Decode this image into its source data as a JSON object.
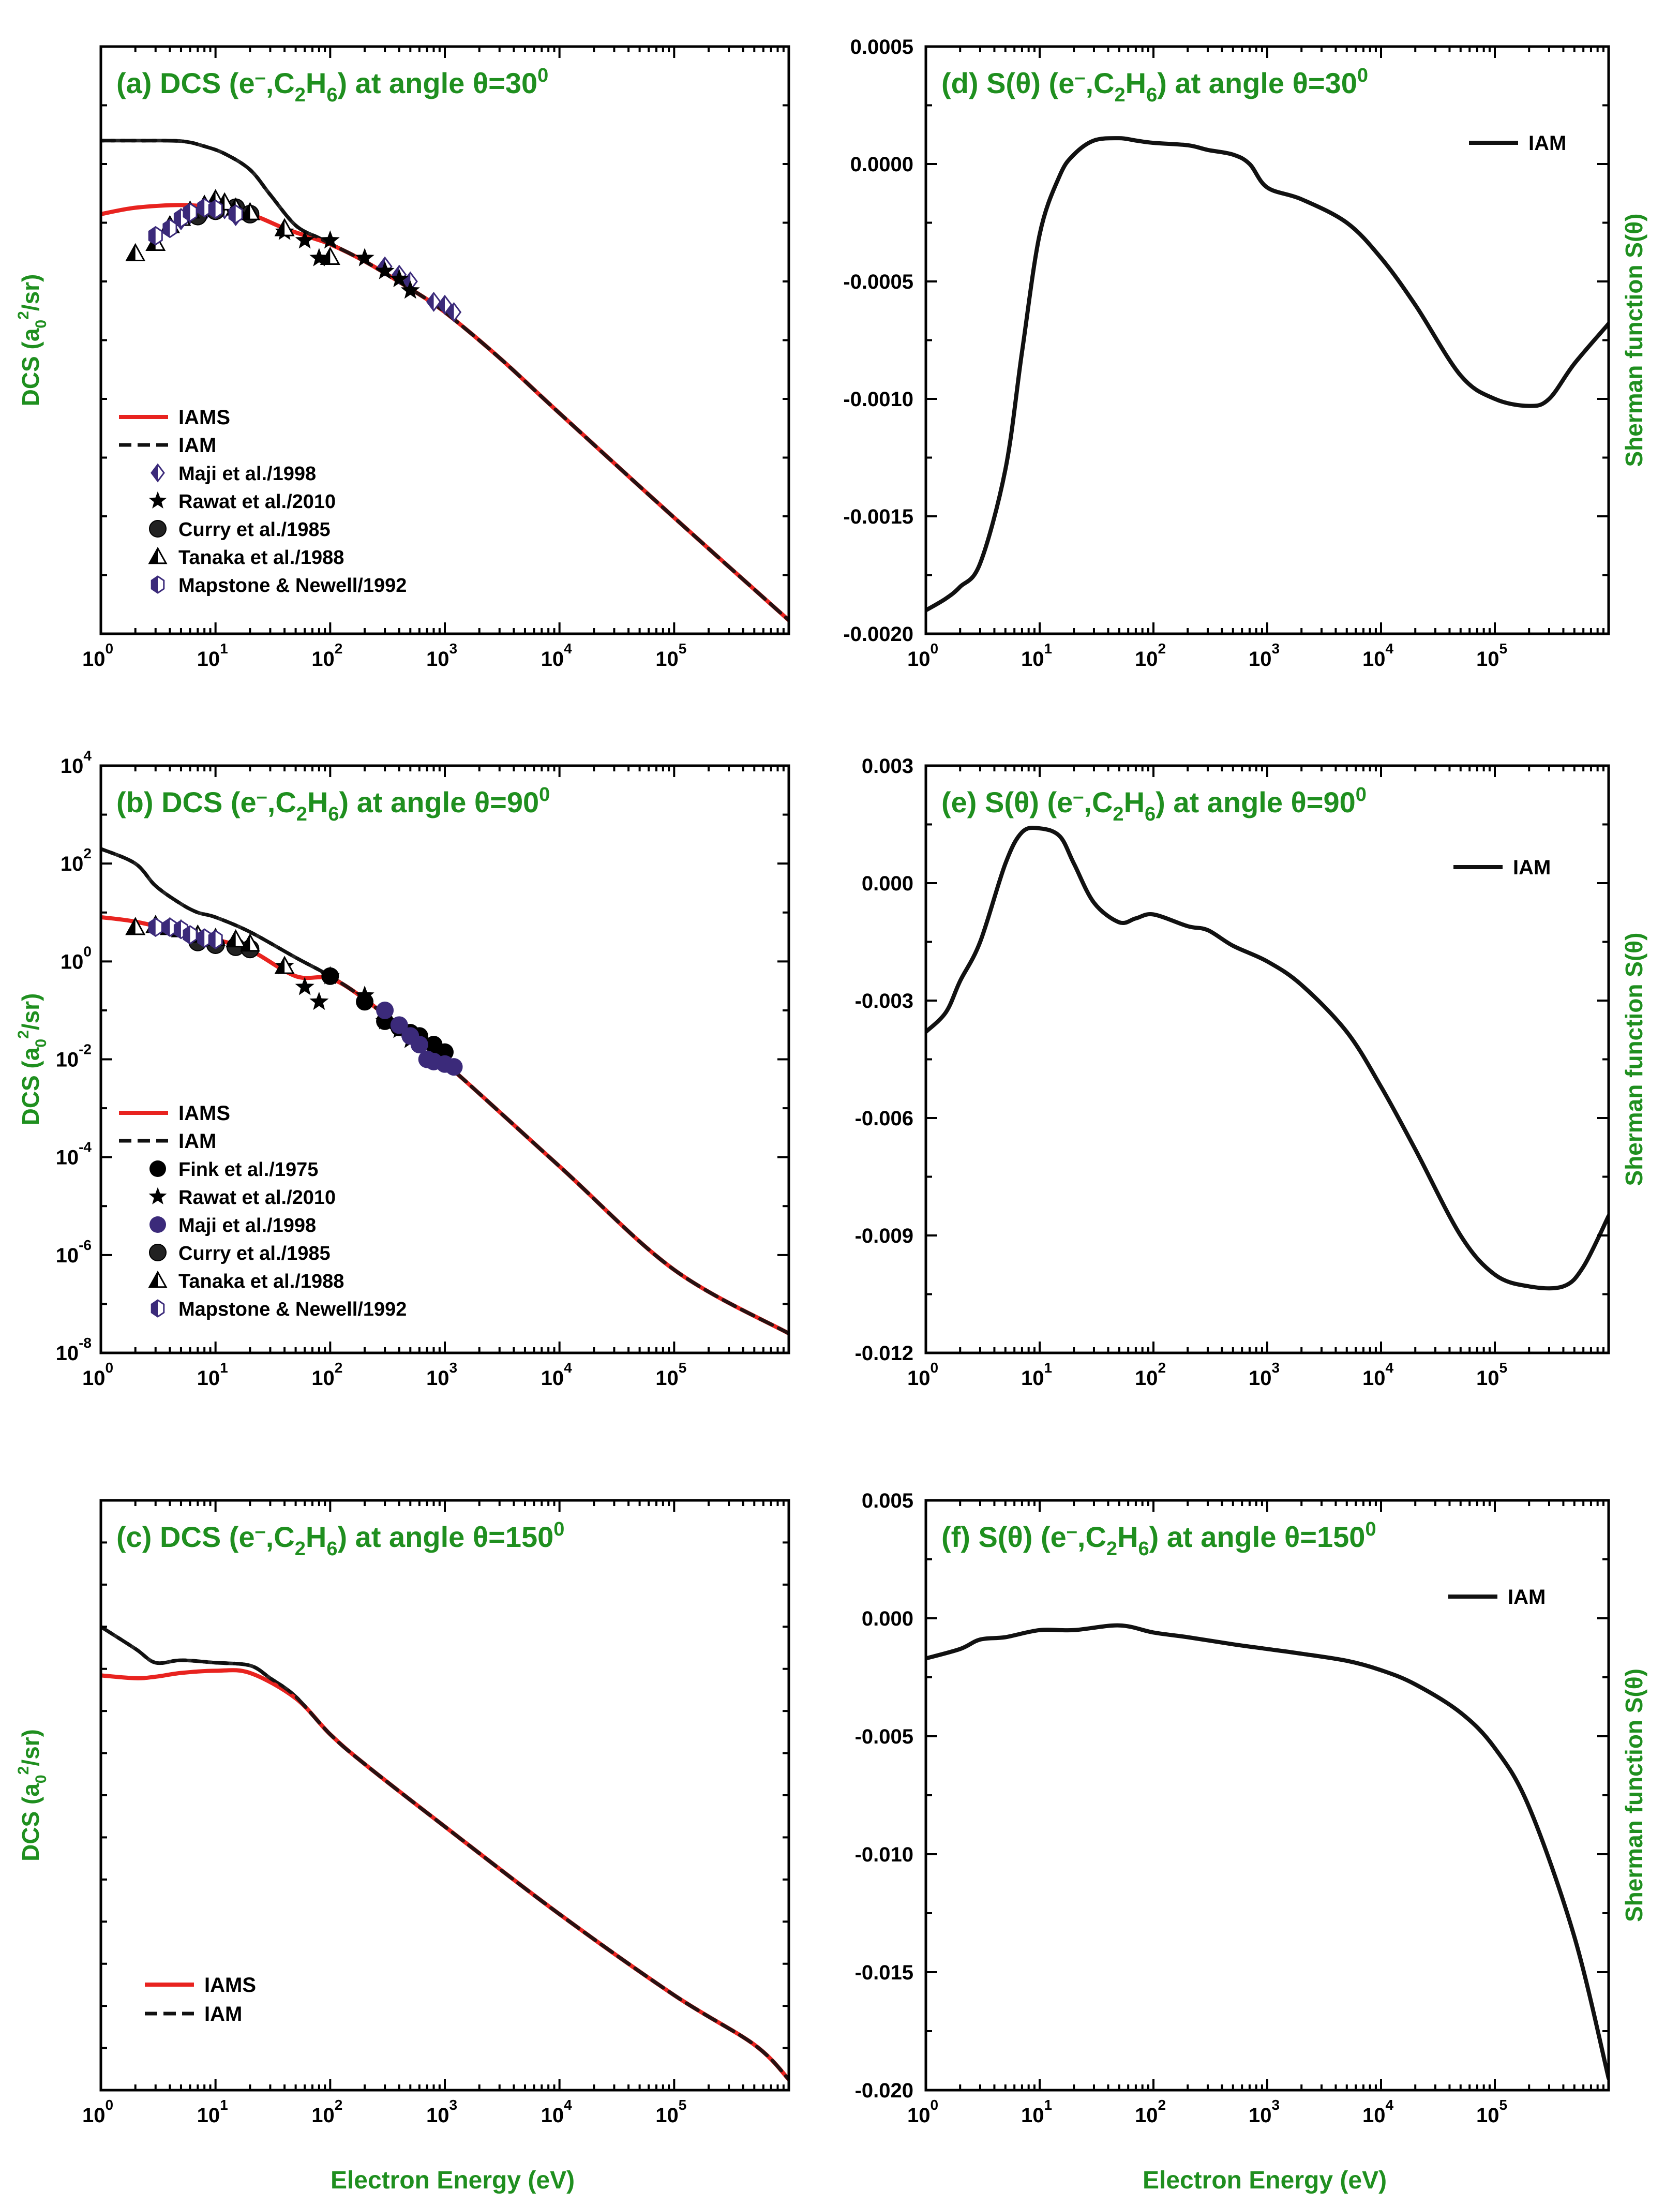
{
  "figure": {
    "xlabel_left": "Electron Energy (eV)",
    "xlabel_right": "Electron Energy (eV)",
    "colors": {
      "iams": "#e8231f",
      "iam": "#111111",
      "label": "#1f8f1f",
      "marker_fill": "#3b2a7a"
    }
  },
  "chart_data": [
    {
      "id": "a",
      "type": "line",
      "title_parts": [
        "(a) DCS (e",
        "–",
        ",C",
        "2",
        "H",
        "6",
        ") at angle θ=30",
        "0"
      ],
      "ylabel_parts": [
        "DCS (a",
        "0",
        "2",
        "/sr)"
      ],
      "xscale": "log",
      "yscale": "log",
      "xlim": [
        1,
        1000000
      ],
      "ylim": [
        1e-06,
        10000
      ],
      "xtick_exponents": [
        0,
        1,
        2,
        3,
        4,
        5,
        6
      ],
      "ytick_exponents": [
        -6,
        -4,
        -2,
        0,
        2,
        4
      ],
      "legend_position": "bottom-left",
      "series": [
        {
          "name": "IAMS",
          "style": "solid",
          "color": "#e8231f",
          "x": [
            1,
            2,
            5,
            10,
            20,
            40,
            70,
            100,
            200,
            500,
            1000,
            3000,
            10000,
            100000,
            1000000
          ],
          "y": [
            14,
            18,
            20,
            18,
            14,
            8,
            5.5,
            4.3,
            2.2,
            0.75,
            0.3,
            0.05,
            0.0057,
            9.5e-05,
            1.7e-06
          ]
        },
        {
          "name": "IAM",
          "style": "dashed",
          "color": "#111111",
          "x": [
            1,
            2,
            5,
            8,
            12,
            20,
            30,
            50,
            80,
            100,
            200,
            500,
            1000,
            3000,
            10000,
            100000,
            1000000
          ],
          "y": [
            250,
            250,
            245,
            200,
            150,
            80,
            30,
            9,
            5.5,
            4.4,
            2.2,
            0.75,
            0.3,
            0.05,
            0.0057,
            9.5e-05,
            1.7e-06
          ]
        }
      ],
      "markers": [
        {
          "name": "Maji et al./1998",
          "marker": "diamond-half",
          "x": [
            5,
            6,
            8,
            10,
            12,
            15,
            300,
            400,
            500,
            800,
            1000,
            1200
          ],
          "y": [
            11,
            14,
            15,
            18,
            17,
            13,
            1.8,
            1.3,
            1.0,
            0.45,
            0.4,
            0.3
          ]
        },
        {
          "name": "Rawat et al./2010",
          "marker": "star",
          "x": [
            40,
            60,
            80,
            100,
            200,
            300,
            400,
            500
          ],
          "y": [
            7,
            5,
            2.5,
            5,
            2.5,
            1.5,
            1.1,
            0.7
          ]
        },
        {
          "name": "Curry et al./1985",
          "marker": "sphere",
          "x": [
            7,
            10,
            15,
            20
          ],
          "y": [
            13,
            16,
            18,
            14
          ]
        },
        {
          "name": "Tanaka et al./1988",
          "marker": "triangle-half",
          "x": [
            2,
            3,
            4,
            5,
            6,
            8,
            10,
            12,
            15,
            20,
            40,
            100
          ],
          "y": [
            3,
            4.5,
            9,
            12,
            16,
            20,
            25,
            22,
            18,
            15,
            8,
            2.6
          ]
        },
        {
          "name": "Mapstone & Newell/1992",
          "marker": "hexagon-half",
          "x": [
            3,
            4,
            5,
            6,
            8,
            10,
            15
          ],
          "y": [
            6,
            8,
            12,
            15,
            18,
            17,
            14
          ]
        }
      ]
    },
    {
      "id": "b",
      "type": "line",
      "title_parts": [
        "(b) DCS (e",
        "–",
        ",C",
        "2",
        "H",
        "6",
        ") at angle θ=90",
        "0"
      ],
      "ylabel_parts": [
        "DCS (a",
        "0",
        "2",
        "/sr)"
      ],
      "xscale": "log",
      "yscale": "log",
      "xlim": [
        1,
        1000000
      ],
      "ylim": [
        1e-08,
        10000
      ],
      "xtick_exponents": [
        0,
        1,
        2,
        3,
        4,
        5,
        6
      ],
      "ytick_exponents": [
        -8,
        -6,
        -4,
        -2,
        0,
        2,
        4
      ],
      "legend_position": "bottom-left",
      "series": [
        {
          "name": "IAMS",
          "style": "solid",
          "color": "#e8231f",
          "x": [
            1,
            2,
            5,
            10,
            20,
            50,
            100,
            200,
            500,
            1000,
            10000,
            100000,
            1000000
          ],
          "y": [
            8,
            6.5,
            4,
            2.8,
            1.7,
            0.5,
            0.45,
            0.17,
            0.03,
            0.0085,
            6.5e-05,
            5e-07,
            2.5e-08
          ]
        },
        {
          "name": "IAM",
          "style": "dashed",
          "color": "#111111",
          "x": [
            1,
            2,
            3,
            5,
            7,
            10,
            20,
            50,
            100,
            200,
            500,
            1000,
            10000,
            100000,
            1000000
          ],
          "y": [
            200,
            100,
            35,
            15,
            10,
            8,
            4,
            1.2,
            0.5,
            0.17,
            0.03,
            0.0085,
            6.5e-05,
            5e-07,
            2.5e-08
          ]
        }
      ],
      "markers": [
        {
          "name": "Fink et al./1975",
          "marker": "circle",
          "x": [
            100,
            200,
            300,
            400,
            500,
            600,
            800,
            1000
          ],
          "y": [
            0.5,
            0.15,
            0.06,
            0.045,
            0.035,
            0.03,
            0.02,
            0.014
          ]
        },
        {
          "name": "Rawat et al./2010",
          "marker": "star",
          "x": [
            40,
            60,
            80,
            100,
            200,
            300,
            400,
            500
          ],
          "y": [
            0.8,
            0.3,
            0.15,
            0.5,
            0.2,
            0.06,
            0.04,
            0.025
          ]
        },
        {
          "name": "Maji et al./1998",
          "marker": "circle-filled",
          "x": [
            300,
            400,
            500,
            600,
            700,
            800,
            1000,
            1200
          ],
          "y": [
            0.1,
            0.05,
            0.03,
            0.02,
            0.01,
            0.009,
            0.008,
            0.007
          ]
        },
        {
          "name": "Curry et al./1985",
          "marker": "sphere",
          "x": [
            7,
            10,
            15,
            20
          ],
          "y": [
            2.5,
            2.2,
            2.0,
            1.8
          ]
        },
        {
          "name": "Tanaka et al./1988",
          "marker": "triangle-half",
          "x": [
            2,
            3,
            4,
            5,
            7,
            10,
            15,
            20,
            40
          ],
          "y": [
            5,
            5.5,
            5,
            4.5,
            3.5,
            3,
            2.8,
            2.3,
            0.8
          ]
        },
        {
          "name": "Mapstone & Newell/1992",
          "marker": "hexagon-half",
          "x": [
            3,
            4,
            5,
            6,
            8,
            10
          ],
          "y": [
            5,
            5,
            4.5,
            3.5,
            3,
            2.8
          ]
        }
      ]
    },
    {
      "id": "c",
      "type": "line",
      "title_parts": [
        "(c) DCS (e",
        "–",
        ",C",
        "2",
        "H",
        "6",
        ") at angle θ=150",
        "0"
      ],
      "ylabel_parts": [
        "DCS (a",
        "0",
        "2",
        "/sr)"
      ],
      "xscale": "log",
      "yscale": "log",
      "xlim": [
        1,
        1000000
      ],
      "ylim": [
        1e-09,
        100000
      ],
      "xtick_exponents": [
        0,
        1,
        2,
        3,
        4,
        5,
        6
      ],
      "ytick_exponents": [
        -9,
        -7,
        -5,
        -3,
        -1,
        1,
        3,
        5
      ],
      "legend_position": "bottom-left",
      "series": [
        {
          "name": "IAMS",
          "style": "solid",
          "color": "#e8231f",
          "x": [
            1,
            2,
            3,
            5,
            10,
            20,
            50,
            100,
            200,
            1000,
            10000,
            100000,
            500000,
            1000000
          ],
          "y": [
            7,
            6,
            6.5,
            8,
            9,
            8,
            2,
            0.28,
            0.055,
            0.0018,
            1.5e-05,
            1.8e-07,
            1.2e-08,
            1.8e-09
          ]
        },
        {
          "name": "IAM",
          "style": "dashed",
          "color": "#111111",
          "x": [
            1,
            2,
            3,
            5,
            10,
            20,
            30,
            50,
            100,
            200,
            1000,
            10000,
            100000,
            500000,
            1000000
          ],
          "y": [
            100,
            30,
            14,
            16,
            14,
            12,
            6,
            2.2,
            0.28,
            0.055,
            0.0018,
            1.5e-05,
            1.8e-07,
            1.2e-08,
            1.8e-09
          ]
        }
      ],
      "markers": []
    },
    {
      "id": "d",
      "type": "line",
      "title_parts": [
        "(d) S(θ) (e",
        "–",
        ",C",
        "2",
        "H",
        "6",
        ") at angle θ=30",
        "0"
      ],
      "ylabel_parts": [
        "Sherman function S(θ)"
      ],
      "xscale": "log",
      "yscale": "linear",
      "xlim": [
        1,
        1000000
      ],
      "ylim": [
        -0.002,
        0.0005
      ],
      "xtick_exponents": [
        0,
        1,
        2,
        3,
        4,
        5,
        6
      ],
      "yticks": [
        -0.002,
        -0.0015,
        -0.001,
        -0.0005,
        0,
        0.0005
      ],
      "ytick_labels": [
        "-0.0020",
        "-0.0015",
        "-0.0010",
        "-0.0005",
        "0.0000",
        "0.0005"
      ],
      "legend_position": "top-right",
      "series": [
        {
          "name": "IAM",
          "style": "solid",
          "color": "#111111",
          "x": [
            1,
            1.5,
            2,
            3,
            5,
            7,
            10,
            15,
            20,
            30,
            50,
            70,
            100,
            200,
            300,
            500,
            700,
            1000,
            2000,
            5000,
            10000,
            20000,
            50000,
            100000,
            200000,
            300000,
            500000,
            1000000
          ],
          "y": [
            -0.0019,
            -0.00185,
            -0.0018,
            -0.0017,
            -0.0013,
            -0.0008,
            -0.0003,
            -5e-05,
            4e-05,
            0.0001,
            0.00011,
            0.0001,
            9e-05,
            8e-05,
            6e-05,
            4e-05,
            0.0,
            -0.0001,
            -0.00015,
            -0.00025,
            -0.0004,
            -0.0006,
            -0.0009,
            -0.001,
            -0.00103,
            -0.001,
            -0.00085,
            -0.00068
          ]
        }
      ],
      "markers": []
    },
    {
      "id": "e",
      "type": "line",
      "title_parts": [
        "(e) S(θ) (e",
        "–",
        ",C",
        "2",
        "H",
        "6",
        ") at angle θ=90",
        "0"
      ],
      "ylabel_parts": [
        "Sherman function S(θ)"
      ],
      "xscale": "log",
      "yscale": "linear",
      "xlim": [
        1,
        1000000
      ],
      "ylim": [
        -0.012,
        0.003
      ],
      "xtick_exponents": [
        0,
        1,
        2,
        3,
        4,
        5,
        6
      ],
      "yticks": [
        -0.012,
        -0.009,
        -0.006,
        -0.003,
        0,
        0.003
      ],
      "ytick_labels": [
        "-0.012",
        "-0.009",
        "-0.006",
        "-0.003",
        "0.000",
        "0.003"
      ],
      "legend_position": "top-right",
      "series": [
        {
          "name": "IAM",
          "style": "solid",
          "color": "#111111",
          "x": [
            1,
            1.5,
            2,
            3,
            5,
            7,
            10,
            15,
            20,
            30,
            50,
            70,
            100,
            200,
            300,
            500,
            1000,
            2000,
            5000,
            10000,
            20000,
            50000,
            100000,
            200000,
            400000,
            600000,
            1000000
          ],
          "y": [
            -0.0038,
            -0.0033,
            -0.0025,
            -0.0015,
            0.0005,
            0.0013,
            0.0014,
            0.0012,
            0.0005,
            -0.0005,
            -0.001,
            -0.0009,
            -0.0008,
            -0.0011,
            -0.0012,
            -0.0016,
            -0.002,
            -0.0026,
            -0.0038,
            -0.0052,
            -0.0068,
            -0.009,
            -0.01,
            -0.0103,
            -0.0103,
            -0.0098,
            -0.0085
          ]
        }
      ],
      "markers": []
    },
    {
      "id": "f",
      "type": "line",
      "title_parts": [
        "(f) S(θ) (e",
        "–",
        ",C",
        "2",
        "H",
        "6",
        ") at angle θ=150",
        "0"
      ],
      "ylabel_parts": [
        "Sherman function S(θ)"
      ],
      "xscale": "log",
      "yscale": "linear",
      "xlim": [
        1,
        1000000
      ],
      "ylim": [
        -0.02,
        0.005
      ],
      "xtick_exponents": [
        0,
        1,
        2,
        3,
        4,
        5,
        6
      ],
      "yticks": [
        -0.02,
        -0.015,
        -0.01,
        -0.005,
        0,
        0.005
      ],
      "ytick_labels": [
        "-0.020",
        "-0.015",
        "-0.010",
        "-0.005",
        "0.000",
        "0.005"
      ],
      "legend_position": "top-right",
      "series": [
        {
          "name": "IAM",
          "style": "solid",
          "color": "#111111",
          "x": [
            1,
            2,
            3,
            5,
            10,
            20,
            50,
            100,
            200,
            500,
            1000,
            2000,
            5000,
            10000,
            20000,
            50000,
            100000,
            200000,
            500000,
            1000000
          ],
          "y": [
            -0.0017,
            -0.0013,
            -0.0009,
            -0.0008,
            -0.0005,
            -0.0005,
            -0.0003,
            -0.0006,
            -0.0008,
            -0.0011,
            -0.0013,
            -0.0015,
            -0.0018,
            -0.0022,
            -0.0028,
            -0.004,
            -0.0055,
            -0.008,
            -0.0135,
            -0.0195
          ]
        }
      ],
      "markers": []
    }
  ]
}
